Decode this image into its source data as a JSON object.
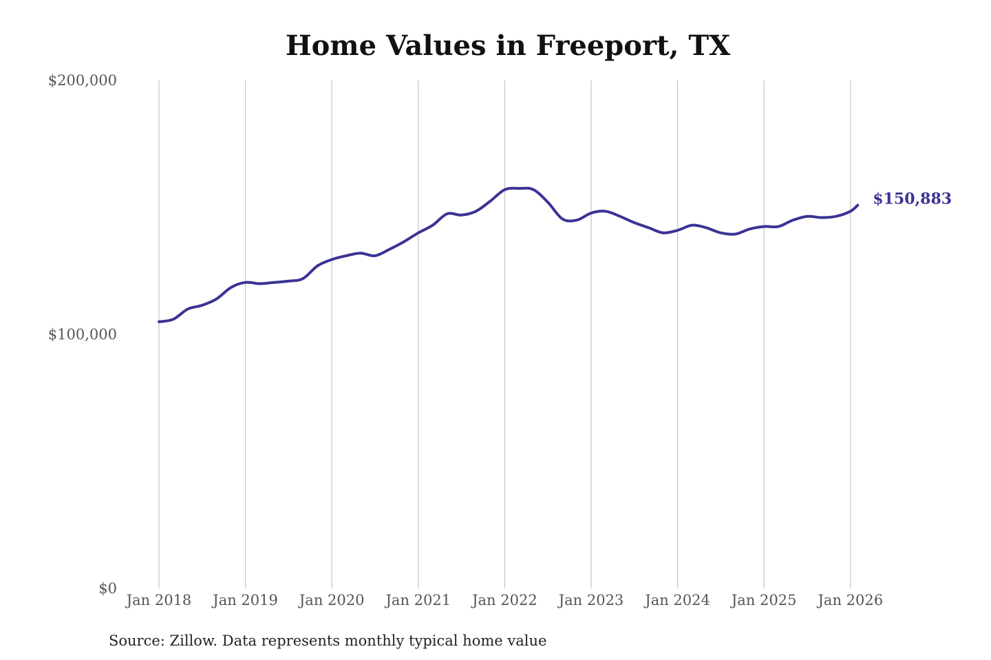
{
  "chart_data": {
    "type": "line",
    "title": "Home Values in Freeport, TX",
    "source": "Source: Zillow. Data represents monthly typical home value",
    "xlabel": "",
    "ylabel": "",
    "ylim": [
      0,
      200000
    ],
    "yticks": [
      {
        "value": 0,
        "label": "$0"
      },
      {
        "value": 100000,
        "label": "$100,000"
      },
      {
        "value": 200000,
        "label": "$200,000"
      }
    ],
    "xticks": [
      {
        "value": "2018-01",
        "label": "Jan 2018"
      },
      {
        "value": "2019-01",
        "label": "Jan 2019"
      },
      {
        "value": "2020-01",
        "label": "Jan 2020"
      },
      {
        "value": "2021-01",
        "label": "Jan 2021"
      },
      {
        "value": "2022-01",
        "label": "Jan 2022"
      },
      {
        "value": "2023-01",
        "label": "Jan 2023"
      },
      {
        "value": "2024-01",
        "label": "Jan 2024"
      },
      {
        "value": "2025-01",
        "label": "Jan 2025"
      },
      {
        "value": "2026-01",
        "label": "Jan 2026"
      }
    ],
    "grid": "vertical",
    "line_color": "#3b3394",
    "end_label": "$150,883",
    "series": [
      {
        "x": [
          "2018-01",
          "2018-03",
          "2018-05",
          "2018-07",
          "2018-09",
          "2018-11",
          "2019-01",
          "2019-03",
          "2019-05",
          "2019-07",
          "2019-09",
          "2019-11",
          "2020-01",
          "2020-03",
          "2020-05",
          "2020-07",
          "2020-09",
          "2020-11",
          "2021-01",
          "2021-03",
          "2021-05",
          "2021-07",
          "2021-09",
          "2021-11",
          "2022-01",
          "2022-03",
          "2022-05",
          "2022-07",
          "2022-09",
          "2022-11",
          "2023-01",
          "2023-03",
          "2023-05",
          "2023-07",
          "2023-09",
          "2023-11",
          "2024-01",
          "2024-03",
          "2024-05",
          "2024-07",
          "2024-09",
          "2024-11",
          "2025-01",
          "2025-03",
          "2025-05",
          "2025-07",
          "2025-09",
          "2025-11",
          "2026-01",
          "2026-02"
        ],
        "values": [
          105000,
          106000,
          110000,
          111500,
          114000,
          118500,
          120500,
          120000,
          120500,
          121000,
          122000,
          127000,
          129500,
          131000,
          132000,
          131000,
          133500,
          136500,
          140000,
          143000,
          147500,
          147000,
          148500,
          152500,
          157000,
          157500,
          157000,
          152000,
          145500,
          145000,
          147800,
          148500,
          146500,
          144000,
          142000,
          140000,
          141000,
          143000,
          142000,
          140000,
          139500,
          141500,
          142500,
          142500,
          145000,
          146500,
          146000,
          146500,
          148500,
          150883
        ]
      }
    ]
  }
}
